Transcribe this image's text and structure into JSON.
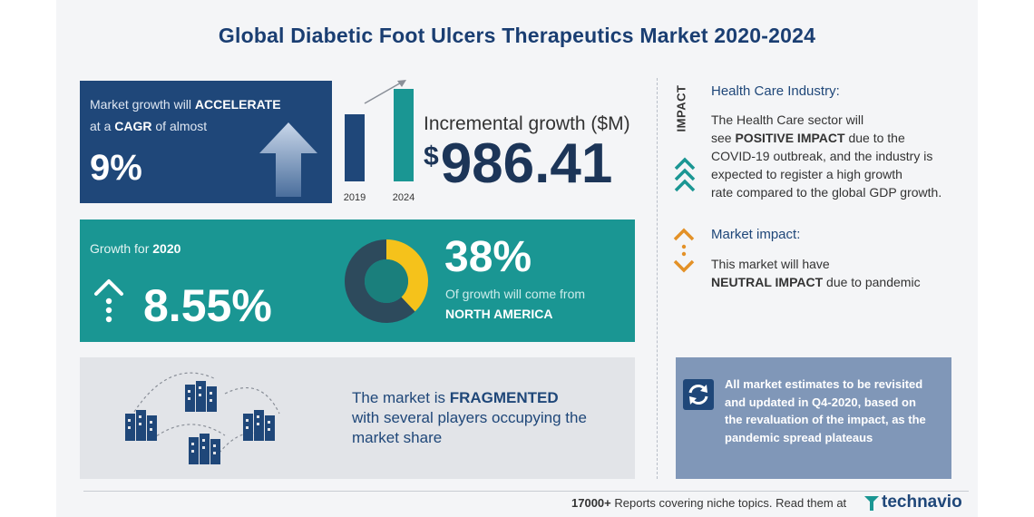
{
  "title": "Global Diabetic Foot Ulcers Therapeutics Market 2020-2024",
  "cagr_box": {
    "line1_pre": "Market growth will ",
    "line1_bold": "ACCELERATE",
    "line2_pre": "at a ",
    "line2_bold": "CAGR",
    "line2_post": " of almost",
    "value": "9%",
    "icon": "up-arrow-icon"
  },
  "incremental": {
    "bar_years": [
      "2019",
      "2024"
    ],
    "bar_colors": [
      "#1f4779",
      "#1a9693"
    ],
    "label": "Incremental growth ($M)",
    "currency": "$",
    "value": "986.41"
  },
  "growth_box": {
    "label_pre": "Growth for ",
    "label_year": "2020",
    "value": "8.55%",
    "donut_share": 38,
    "donut_colors": [
      "#f5c21b",
      "#2d4a5c",
      "#1a7f7c"
    ],
    "share_text": "38%",
    "share_desc": "Of growth will come from",
    "region": "NORTH AMERICA"
  },
  "fragmented_box": {
    "pre": "The market is ",
    "bold": "FRAGMENTED",
    "post": "with several players occupying the market share"
  },
  "impact": {
    "vertical_label": "IMPACT",
    "hc_title": "Health Care Industry:",
    "hc_line1": "The Health Care sector will",
    "hc_line2_pre": "see ",
    "hc_line2_bold": "POSITIVE IMPACT",
    "hc_line2_post": " due to the",
    "hc_line3": "COVID-19 outbreak, and the industry is",
    "hc_line4": "expected to register a high growth",
    "hc_line5": "rate compared to the global GDP growth.",
    "mi_title": "Market impact:",
    "mi_line1": "This market will have",
    "mi_line2_bold": "NEUTRAL IMPACT",
    "mi_line2_post": " due to pandemic"
  },
  "note": {
    "text": "All market estimates to be revisited and updated in Q4-2020, based on the revaluation of the impact, as the pandemic spread plateaus"
  },
  "footer": {
    "bold": "17000+",
    "text": " Reports covering niche topics. Read them at",
    "logo": "technavio"
  },
  "colors": {
    "navy": "#1f4779",
    "teal": "#1a9693",
    "gray": "#e2e4e8",
    "note": "#8097b8"
  }
}
